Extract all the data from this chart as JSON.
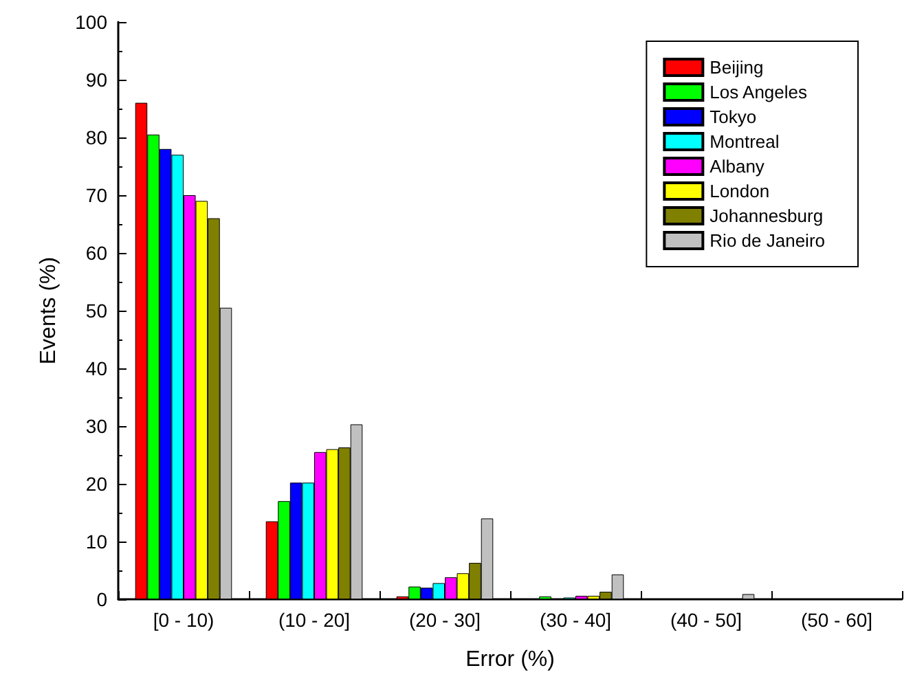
{
  "chart_data": {
    "type": "bar",
    "xlabel": "Error (%)",
    "ylabel": "Events (%)",
    "categories": [
      "[0 - 10)",
      "(10 - 20]",
      "(20 - 30]",
      "(30 - 40]",
      "(40 - 50]",
      "(50 - 60]"
    ],
    "series": [
      {
        "name": "Beijing",
        "color": "#ff0000",
        "values": [
          86,
          13.5,
          0.5,
          null,
          null,
          null
        ]
      },
      {
        "name": "Los Angeles",
        "color": "#00ff00",
        "values": [
          80.5,
          17,
          2.2,
          0.5,
          null,
          null
        ]
      },
      {
        "name": "Tokyo",
        "color": "#0000ff",
        "values": [
          78,
          20.2,
          2,
          null,
          null,
          null
        ]
      },
      {
        "name": "Montreal",
        "color": "#00ffff",
        "values": [
          77,
          20.2,
          2.8,
          0.3,
          null,
          null
        ]
      },
      {
        "name": "Albany",
        "color": "#ff00ff",
        "values": [
          70,
          25.5,
          3.8,
          0.6,
          null,
          null
        ]
      },
      {
        "name": "London",
        "color": "#ffff00",
        "values": [
          69,
          26,
          4.5,
          0.6,
          null,
          null
        ]
      },
      {
        "name": "Johannesburg",
        "color": "#808000",
        "values": [
          66,
          26.3,
          6.3,
          1.3,
          null,
          null
        ]
      },
      {
        "name": "Rio de Janeiro",
        "color": "#c0c0c0",
        "values": [
          50.5,
          30.3,
          14,
          4.3,
          0.9,
          null
        ]
      }
    ],
    "ylim": [
      0,
      100
    ],
    "yticks": [
      0,
      10,
      20,
      30,
      40,
      50,
      60,
      70,
      80,
      90,
      100
    ],
    "grid": false,
    "legend": "top right"
  }
}
